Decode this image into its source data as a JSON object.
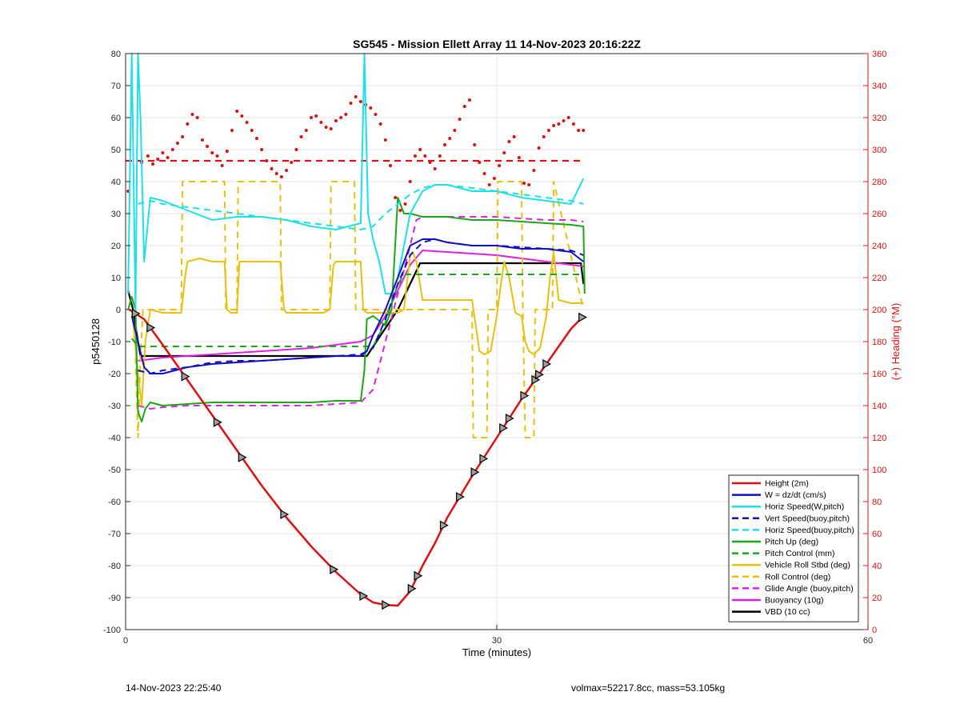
{
  "chart_data": {
    "type": "line",
    "title": "SG545 - Mission Ellett Array 11 14-Nov-2023 20:16:22Z",
    "xlabel": "Time (minutes)",
    "ylabel": "p5450128",
    "y2label": "(+) Heading (°M)",
    "xlim": [
      0,
      60
    ],
    "ylim": [
      -100,
      80
    ],
    "y2lim": [
      0,
      360
    ],
    "xticks": [
      0,
      30,
      60
    ],
    "yticks": [
      -100,
      -90,
      -80,
      -70,
      -60,
      -50,
      -40,
      -30,
      -20,
      -10,
      0,
      10,
      20,
      30,
      40,
      50,
      60,
      70,
      80
    ],
    "y2ticks": [
      0,
      20,
      40,
      60,
      80,
      100,
      120,
      140,
      160,
      180,
      200,
      220,
      240,
      260,
      280,
      300,
      320,
      340,
      360
    ],
    "grid": true,
    "legend_position": "bottom-right",
    "series": [
      {
        "name": "Height (2m)",
        "color": "#e01010",
        "style": "solid",
        "width": 2.5,
        "x": [
          0.3,
          1.5,
          3,
          5,
          7,
          9,
          11,
          13,
          15,
          17,
          19,
          20,
          21,
          22,
          23,
          24,
          25,
          26,
          28,
          30,
          32,
          34,
          36,
          37
        ],
        "y": [
          0,
          -3,
          -11,
          -22,
          -33,
          -44,
          -55,
          -65,
          -74,
          -82,
          -89,
          -91.5,
          -92.3,
          -92.5,
          -88,
          -80,
          -73,
          -65,
          -52,
          -40,
          -28,
          -17,
          -6,
          -2
        ]
      },
      {
        "name": "W = dz/dt (cm/s)",
        "color": "#1010c0",
        "style": "solid",
        "width": 2,
        "x": [
          0.5,
          1,
          1.5,
          2,
          3,
          5,
          7,
          9,
          11,
          13,
          15,
          17,
          19,
          19.5,
          20,
          21,
          22,
          23,
          24,
          25,
          26,
          28,
          30,
          32,
          34,
          36,
          37
        ],
        "y": [
          -2,
          -10,
          -18,
          -20,
          -20,
          -18,
          -17,
          -16.5,
          -16,
          -15.5,
          -15,
          -14.5,
          -14.5,
          -13,
          -8,
          0,
          10,
          20,
          22,
          22,
          21,
          20,
          20,
          19,
          19,
          18,
          15
        ]
      },
      {
        "name": "Horiz Speed(W,pitch)",
        "color": "#1ee0e8",
        "style": "solid",
        "width": 2,
        "x": [
          0.2,
          0.5,
          0.8,
          1.0,
          1.2,
          1.5,
          2,
          3,
          5,
          7,
          9,
          11,
          13,
          15,
          17,
          19,
          19.3,
          19.6,
          20,
          20.5,
          21,
          21.5,
          22,
          23,
          24,
          25,
          26,
          28,
          30,
          32,
          34,
          36,
          37
        ],
        "y": [
          5,
          80,
          0,
          80,
          60,
          15,
          35,
          34,
          31,
          28,
          29,
          29,
          28,
          26,
          25,
          27,
          80,
          30,
          22,
          15,
          5,
          5,
          10,
          30,
          37,
          39,
          39,
          37,
          37,
          35,
          34,
          33,
          41
        ]
      },
      {
        "name": "Vert Speed(buoy,pitch)",
        "color": "#1010c0",
        "style": "dashed",
        "width": 2,
        "x": [
          1,
          2,
          3,
          5,
          7,
          9,
          11,
          13,
          15,
          17,
          19,
          20,
          21,
          22,
          23,
          24,
          25,
          26,
          28,
          30,
          32,
          34,
          36,
          37
        ],
        "y": [
          -19,
          -20,
          -19,
          -18,
          -16.5,
          -16,
          -16,
          -15.5,
          -15,
          -14.5,
          -14,
          -12,
          -3,
          8,
          17,
          21,
          22,
          21,
          20,
          20,
          19.5,
          19,
          18.5,
          17
        ]
      },
      {
        "name": "Horiz Speed(buoy,pitch)",
        "color": "#1ee0e8",
        "style": "dashed",
        "width": 2,
        "x": [
          1,
          2,
          3,
          5,
          7,
          9,
          11,
          13,
          15,
          17,
          19,
          20,
          21,
          22,
          23,
          24,
          25,
          26,
          28,
          30,
          32,
          34,
          36,
          37
        ],
        "y": [
          33,
          34,
          33,
          32,
          31,
          30,
          29,
          28,
          27,
          26,
          25,
          26,
          30,
          33,
          36,
          38,
          39,
          39,
          38,
          37,
          36,
          35,
          34,
          33
        ]
      },
      {
        "name": "Pitch Up (deg)",
        "color": "#18a818",
        "style": "solid",
        "width": 2,
        "x": [
          0.2,
          0.5,
          0.8,
          1.0,
          1.3,
          1.6,
          2,
          3,
          5,
          7,
          9,
          11,
          13,
          15,
          17,
          19,
          19.3,
          19.5,
          20,
          21,
          21.5,
          22,
          22.5,
          23,
          24,
          26,
          28,
          30,
          32,
          34,
          36,
          37,
          37.1
        ],
        "y": [
          0,
          4,
          0,
          -32,
          -35,
          -31,
          -29,
          -30,
          -29.5,
          -29,
          -29,
          -29,
          -29,
          -29,
          -28.5,
          -28.5,
          -19,
          -3,
          -2,
          -5,
          0,
          35,
          30,
          30,
          29,
          29,
          28,
          28,
          27.5,
          27,
          26.5,
          26,
          5
        ]
      },
      {
        "name": "Pitch Control (mm)",
        "color": "#18a818",
        "style": "dashed",
        "width": 2,
        "x": [
          0.5,
          1,
          20,
          21,
          22,
          22.5,
          23.5,
          37
        ],
        "y": [
          -9,
          -11.5,
          -11.5,
          -4,
          8,
          11,
          11,
          11
        ]
      },
      {
        "name": "Vehicle Roll Stbd (deg)",
        "color": "#e8c010",
        "style": "solid",
        "width": 2,
        "x": [
          0.5,
          1,
          1.3,
          1.6,
          2,
          3,
          4.5,
          4.8,
          5,
          6,
          7,
          8,
          8.2,
          8.5,
          9,
          9.2,
          10,
          11,
          12,
          12.5,
          12.8,
          13,
          14,
          15,
          16,
          16.5,
          16.8,
          17,
          18,
          19,
          19.2,
          19.5,
          20,
          21,
          22,
          22.5,
          23,
          23.2,
          23.5,
          24,
          25,
          26,
          27,
          28,
          28.3,
          28.6,
          29,
          29.5,
          30,
          30.3,
          30.6,
          31,
          31.5,
          32,
          32.3,
          32.6,
          33,
          33.5,
          34,
          34.3,
          34.6,
          35,
          36,
          37
        ],
        "y": [
          0,
          -20,
          -30,
          -10,
          0,
          -1,
          -1,
          10,
          15,
          16,
          15,
          15,
          0,
          -1,
          -1,
          15,
          15,
          15,
          15,
          15,
          0,
          -1,
          -1,
          -1,
          -1,
          0,
          14,
          15,
          15,
          15,
          0,
          -1,
          -1,
          -1,
          -1,
          0,
          17,
          18,
          15,
          3,
          3,
          3,
          3,
          3,
          -5,
          -13,
          -14,
          -13,
          -2,
          7,
          15,
          10,
          -1,
          -2,
          -10,
          -13,
          -14,
          -12,
          -2,
          10,
          18,
          3,
          2,
          2
        ]
      },
      {
        "name": "Roll Control (deg)",
        "color": "#e8c010",
        "style": "dashed",
        "width": 2,
        "x": [
          0.8,
          1,
          1.2,
          1.4,
          2,
          4.5,
          4.6,
          8,
          8.1,
          9,
          9.1,
          12.5,
          12.6,
          16.5,
          16.6,
          17,
          18.5,
          18.6,
          19.5,
          20,
          23,
          23.1,
          28,
          28.1,
          28.2,
          29.2,
          29.3,
          30,
          30.1,
          32,
          32.1,
          32.3,
          33,
          33.1,
          34.5,
          34.6,
          37
        ],
        "y": [
          -15,
          -40,
          -15,
          0,
          0,
          0,
          40,
          40,
          0,
          0,
          40,
          40,
          0,
          0,
          40,
          40,
          40,
          0,
          0,
          0,
          0,
          0,
          0,
          -40,
          -40,
          -40,
          0,
          0,
          40,
          40,
          0,
          -40,
          -40,
          0,
          0,
          40,
          0
        ]
      },
      {
        "name": "Glide Angle (buoy,pitch)",
        "color": "#e020e0",
        "style": "dashed",
        "width": 2,
        "x": [
          1,
          2,
          3,
          5,
          7,
          9,
          11,
          13,
          15,
          17,
          19,
          20,
          21,
          22,
          23,
          23.5,
          24,
          26,
          28,
          30,
          32,
          34,
          36,
          37
        ],
        "y": [
          -30,
          -31,
          -30.5,
          -30,
          -30,
          -30,
          -30,
          -30,
          -30,
          -29.5,
          -29,
          -25,
          -10,
          5,
          20,
          28,
          29,
          29,
          29,
          29,
          28.5,
          28,
          28,
          27.5
        ]
      },
      {
        "name": "Buoyancy (10g)",
        "color": "#e020e0",
        "style": "solid",
        "width": 2,
        "x": [
          1,
          2,
          3,
          5,
          7,
          9,
          11,
          13,
          15,
          17,
          19,
          20,
          21,
          22,
          23,
          24,
          26,
          28,
          30,
          32,
          34,
          36,
          37
        ],
        "y": [
          -16,
          -15.5,
          -15,
          -14.5,
          -14,
          -13.5,
          -13,
          -12.5,
          -12,
          -11,
          -10,
          -8,
          -2,
          6,
          14,
          18.5,
          18,
          17.5,
          17,
          16,
          15,
          14,
          13.5
        ]
      },
      {
        "name": "VBD (10 cc)",
        "color": "#000000",
        "style": "solid",
        "width": 2.2,
        "x": [
          0.2,
          0.6,
          1,
          1.2,
          2,
          5,
          10,
          15,
          19,
          19.5,
          22,
          23.8,
          25,
          30,
          35,
          36.8,
          37
        ],
        "y": [
          6,
          0,
          -10,
          -14.5,
          -14.5,
          -14.5,
          -14.5,
          -14.5,
          -14.5,
          -14.5,
          0,
          14.5,
          14.5,
          14.5,
          14.5,
          14.5,
          8
        ]
      }
    ],
    "heading_dots": {
      "color": "#e01010",
      "axis": "right",
      "x": [
        0.2,
        1.3,
        1.8,
        2.2,
        2.6,
        3.0,
        3.4,
        3.8,
        4.2,
        4.6,
        5.0,
        5.4,
        5.8,
        6.2,
        6.6,
        7.0,
        7.4,
        7.8,
        8.2,
        8.6,
        9.0,
        9.4,
        9.8,
        10.2,
        10.6,
        11.0,
        11.4,
        11.8,
        12.2,
        12.6,
        13.0,
        13.4,
        13.8,
        14.2,
        14.6,
        15.0,
        15.4,
        15.8,
        16.2,
        16.6,
        17.0,
        17.4,
        17.8,
        18.2,
        18.6,
        19.0,
        19.4,
        19.8,
        20.2,
        20.6,
        21.0,
        21.4,
        21.8,
        22.2,
        22.6,
        23.0,
        23.4,
        23.8,
        24.2,
        24.6,
        25.0,
        25.4,
        25.8,
        26.2,
        26.6,
        27.0,
        27.4,
        27.8,
        28.2,
        28.6,
        29.0,
        29.4,
        29.8,
        30.2,
        30.6,
        31.0,
        31.4,
        31.8,
        32.2,
        32.6,
        33.0,
        33.4,
        33.8,
        34.2,
        34.6,
        35.0,
        35.4,
        35.8,
        36.2,
        36.6,
        37.0
      ],
      "y": [
        274,
        292,
        296,
        291,
        294,
        298,
        295,
        300,
        304,
        308,
        316,
        322,
        320,
        306,
        302,
        298,
        296,
        290,
        299,
        312,
        324,
        321,
        317,
        312,
        307,
        300,
        293,
        288,
        285,
        283,
        287,
        292,
        300,
        308,
        312,
        320,
        321,
        317,
        314,
        313,
        318,
        320,
        322,
        329,
        333,
        330,
        328,
        326,
        322,
        316,
        306,
        290,
        270,
        262,
        266,
        280,
        296,
        300,
        296,
        292,
        288,
        296,
        303,
        307,
        312,
        319,
        327,
        331,
        303,
        292,
        285,
        278,
        282,
        290,
        298,
        305,
        308,
        295,
        279,
        278,
        287,
        301,
        308,
        312,
        315,
        316,
        318,
        320,
        316,
        312,
        312
      ]
    },
    "heading_ref": {
      "color": "#e01010",
      "style": "dashed",
      "value": 293,
      "axis": "right"
    },
    "markers": {
      "color": "#000000",
      "series": "Height (2m)",
      "x": [
        0.8,
        2.0,
        4.8,
        7.4,
        9.4,
        12.8,
        16.8,
        19.2,
        21.0,
        23.1,
        23.6,
        25.7,
        27.0,
        28.2,
        28.9,
        30.5,
        31.0,
        32.2,
        33.1,
        33.4,
        34.0,
        36.9
      ]
    }
  },
  "footer": {
    "left": "14-Nov-2023 22:25:40",
    "right": "volmax=52217.8cc, mass=53.105kg"
  }
}
